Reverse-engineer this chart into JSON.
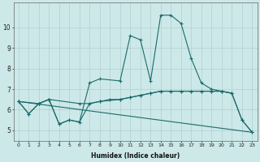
{
  "xlabel": "Humidex (Indice chaleur)",
  "bg_color": "#cde8e8",
  "grid_color": "#aac8cc",
  "line_color": "#1a6b6b",
  "xlim": [
    -0.5,
    23.5
  ],
  "ylim": [
    4.5,
    11.2
  ],
  "xticks": [
    0,
    1,
    2,
    3,
    4,
    5,
    6,
    7,
    8,
    9,
    10,
    11,
    12,
    13,
    14,
    15,
    16,
    17,
    18,
    19,
    20,
    21,
    22,
    23
  ],
  "yticks": [
    5,
    6,
    7,
    8,
    9,
    10
  ],
  "series": [
    {
      "x": [
        0,
        1,
        2,
        3,
        4,
        5,
        6,
        7,
        8,
        10,
        11,
        12,
        13,
        14,
        15,
        16,
        17,
        18,
        19,
        20,
        21,
        22,
        23
      ],
      "y": [
        6.4,
        5.8,
        6.3,
        6.5,
        5.3,
        5.5,
        5.4,
        7.3,
        7.5,
        7.4,
        9.6,
        9.4,
        7.4,
        10.6,
        10.6,
        10.2,
        8.5,
        7.3,
        7.0,
        6.9,
        6.8,
        5.5,
        4.9
      ]
    },
    {
      "x": [
        0,
        2,
        3,
        6,
        7,
        8,
        9,
        10,
        11,
        12,
        13,
        14,
        15,
        16,
        17,
        18,
        19,
        20,
        21
      ],
      "y": [
        6.4,
        6.3,
        6.5,
        6.3,
        6.3,
        6.4,
        6.5,
        6.5,
        6.6,
        6.7,
        6.8,
        6.9,
        6.9,
        6.9,
        6.9,
        6.9,
        6.9,
        6.9,
        6.8
      ]
    },
    {
      "comment": "diagonal line from (0,6.4) to (23,4.9)",
      "x": [
        0,
        23
      ],
      "y": [
        6.4,
        4.9
      ]
    },
    {
      "x": [
        0,
        1,
        2,
        3,
        4,
        5,
        6,
        7,
        8,
        10,
        11,
        12,
        13,
        14,
        15,
        16,
        17,
        18,
        19,
        20,
        21,
        22,
        23
      ],
      "y": [
        6.4,
        5.8,
        6.3,
        6.5,
        5.3,
        5.5,
        5.4,
        6.3,
        6.4,
        6.5,
        6.6,
        6.7,
        6.8,
        6.9,
        6.9,
        6.9,
        6.9,
        6.9,
        6.9,
        6.9,
        6.8,
        5.5,
        4.9
      ]
    }
  ]
}
